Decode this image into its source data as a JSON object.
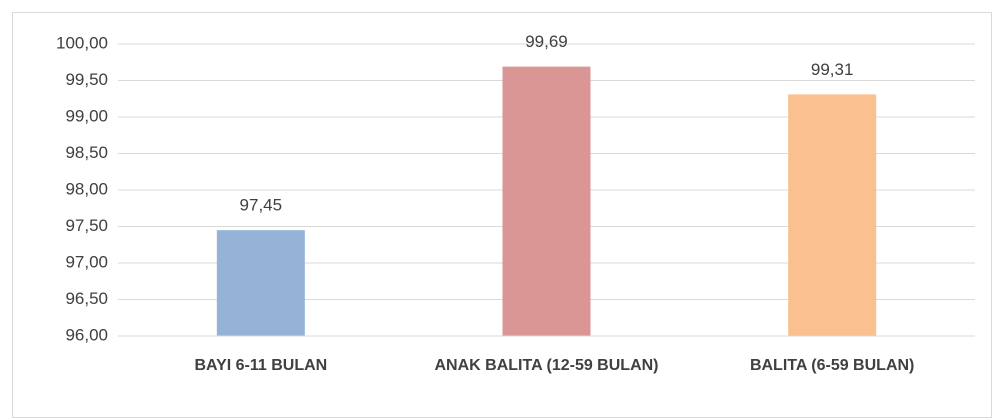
{
  "chart_data": {
    "type": "bar",
    "categories": [
      "BAYI 6-11 BULAN",
      "ANAK BALITA (12-59 BULAN)",
      "BALITA (6-59 BULAN)"
    ],
    "values": [
      97.45,
      99.69,
      99.31
    ],
    "value_labels": [
      "97,45",
      "99,69",
      "99,31"
    ],
    "colors": [
      "#95b3d7",
      "#d99694",
      "#fac090"
    ],
    "ylim": [
      96,
      100
    ],
    "yticks": [
      {
        "value": 96,
        "label": "96,00"
      },
      {
        "value": 96.5,
        "label": "96,50"
      },
      {
        "value": 97,
        "label": "97,00"
      },
      {
        "value": 97.5,
        "label": "97,50"
      },
      {
        "value": 98,
        "label": "98,00"
      },
      {
        "value": 98.5,
        "label": "98,50"
      },
      {
        "value": 99,
        "label": "99,00"
      },
      {
        "value": 99.5,
        "label": "99,50"
      },
      {
        "value": 100,
        "label": "100,00"
      }
    ],
    "grid": true
  }
}
